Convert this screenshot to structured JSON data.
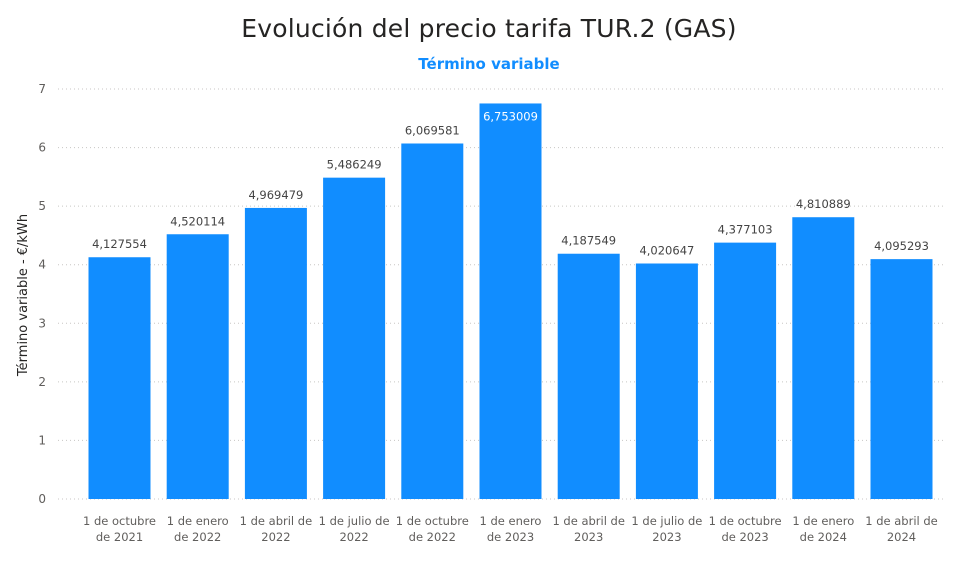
{
  "title": "Evolución del precio tarifa TUR.2 (GAS)",
  "subtitle": "Término variable",
  "colors": {
    "bar": "#118dff",
    "title": "#252423",
    "subtitle": "#118dff",
    "grid": "#c8c6c4",
    "axis_text": "#605e5c"
  },
  "chart_data": {
    "type": "bar",
    "categories": [
      [
        "1 de octubre",
        "de 2021"
      ],
      [
        "1 de enero",
        "de 2022"
      ],
      [
        "1 de abril de",
        "2022"
      ],
      [
        "1 de julio de",
        "2022"
      ],
      [
        "1 de octubre",
        "de 2022"
      ],
      [
        "1 de enero",
        "de 2023"
      ],
      [
        "1 de abril de",
        "2023"
      ],
      [
        "1 de julio de",
        "2023"
      ],
      [
        "1 de octubre",
        "de 2023"
      ],
      [
        "1 de enero",
        "de 2024"
      ],
      [
        "1 de abril de",
        "2024"
      ]
    ],
    "values": [
      4.127554,
      4.520114,
      4.969479,
      5.486249,
      6.069581,
      6.753009,
      4.187549,
      4.020647,
      4.377103,
      4.810889,
      4.095293
    ],
    "data_labels": [
      "4,127554",
      "4,520114",
      "4,969479",
      "5,486249",
      "6,069581",
      "6,753009",
      "4,187549",
      "4,020647",
      "4,377103",
      "4,810889",
      "4,095293"
    ],
    "ylabel": "Término variable - €/kWh",
    "xlabel": "",
    "ylim": [
      0,
      7
    ],
    "yticks": [
      0,
      1,
      2,
      3,
      4,
      5,
      6,
      7
    ],
    "grid": true,
    "legend": "none"
  }
}
